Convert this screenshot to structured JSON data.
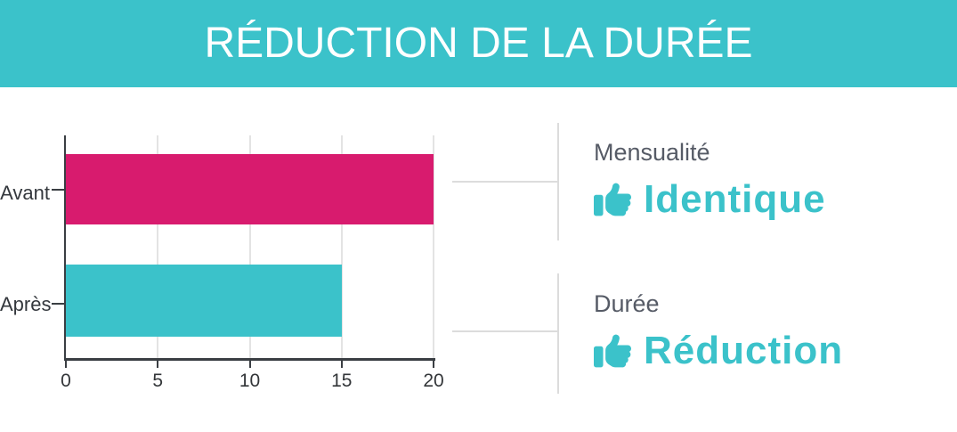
{
  "header": {
    "title": "RÉDUCTION DE LA DURÉE",
    "background_color": "#3BC2CA",
    "text_color": "#FFFFFF"
  },
  "chart_data": {
    "type": "bar",
    "orientation": "horizontal",
    "categories": [
      "Avant",
      "Après"
    ],
    "values": [
      20,
      15
    ],
    "bar_colors": [
      "#D81B6E",
      "#3BC2CA"
    ],
    "xlim": [
      0,
      20
    ],
    "x_ticks": [
      0,
      5,
      10,
      15,
      20
    ],
    "grid": "vertical-gridlines-on",
    "legend": "none",
    "title": "",
    "xlabel": "",
    "ylabel": ""
  },
  "panel": {
    "cards": [
      {
        "label": "Mensualité",
        "value": "Identique",
        "icon": "thumbs-up"
      },
      {
        "label": "Durée",
        "value": "Réduction",
        "icon": "thumbs-up"
      }
    ],
    "accent_color": "#3BC2CA",
    "label_color": "#565B66"
  }
}
